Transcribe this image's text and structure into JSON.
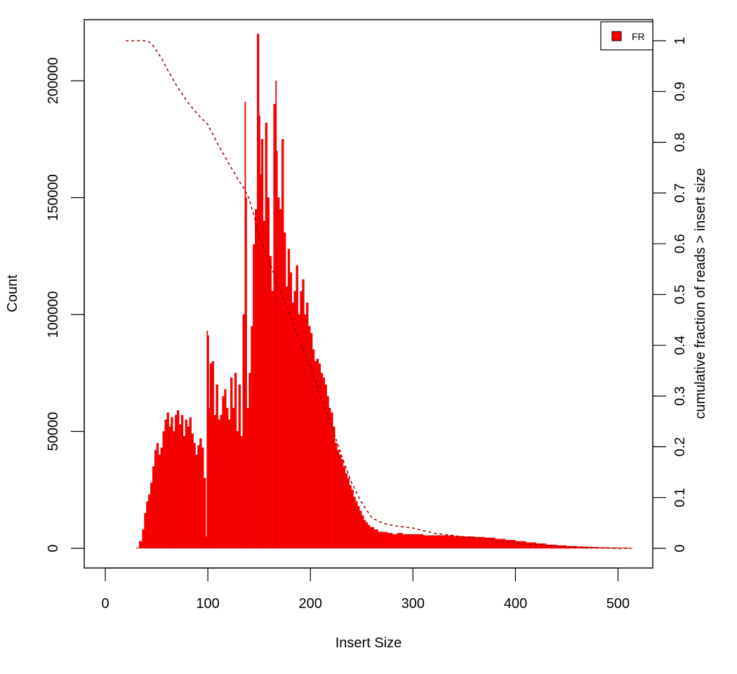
{
  "chart_data": {
    "type": "bar",
    "title": "",
    "xlabel": "Insert Size",
    "ylabel": "Count",
    "y2label": "cumulative fraction of reads > insert size",
    "xlim": [
      0,
      520
    ],
    "ylim": [
      0,
      217000
    ],
    "y2lim": [
      0,
      1
    ],
    "x_ticks": [
      0,
      100,
      200,
      300,
      400,
      500
    ],
    "y_ticks": [
      0,
      50000,
      100000,
      150000,
      200000
    ],
    "y2_ticks": [
      0,
      0.1,
      0.2,
      0.3,
      0.4,
      0.5,
      0.6,
      0.7,
      0.8,
      0.9,
      1
    ],
    "legend": {
      "position": "top-right",
      "entries": [
        "FR"
      ]
    },
    "colors": {
      "bars": "#ff0000",
      "bar_edge": "#cc0000",
      "cumulative_line": "#990000"
    },
    "series": [
      {
        "name": "FR",
        "type": "histogram",
        "x": [
          20,
          25,
          30,
          33,
          36,
          38,
          40,
          42,
          44,
          46,
          48,
          50,
          52,
          54,
          56,
          58,
          60,
          62,
          64,
          66,
          68,
          70,
          72,
          74,
          76,
          78,
          80,
          82,
          84,
          86,
          88,
          90,
          92,
          94,
          96,
          98,
          99,
          100,
          101,
          102,
          104,
          106,
          108,
          110,
          112,
          114,
          116,
          118,
          120,
          122,
          124,
          126,
          128,
          130,
          132,
          134,
          136,
          137,
          138,
          140,
          142,
          144,
          146,
          148,
          150,
          151,
          152,
          154,
          156,
          158,
          160,
          162,
          164,
          166,
          167,
          168,
          170,
          172,
          174,
          176,
          178,
          180,
          182,
          184,
          186,
          188,
          190,
          192,
          194,
          196,
          198,
          200,
          202,
          204,
          206,
          208,
          210,
          212,
          214,
          216,
          218,
          220,
          222,
          224,
          226,
          228,
          230,
          232,
          234,
          236,
          238,
          240,
          242,
          244,
          246,
          248,
          250,
          252,
          254,
          256,
          258,
          260,
          262,
          264,
          266,
          268,
          270,
          275,
          280,
          285,
          290,
          295,
          300,
          310,
          320,
          330,
          340,
          350,
          360,
          370,
          380,
          390,
          400,
          410,
          420,
          430,
          440,
          450,
          460,
          470,
          480,
          490,
          500,
          510,
          513
        ],
        "values": [
          0,
          0,
          200,
          3000,
          8000,
          15000,
          20000,
          23000,
          28000,
          35000,
          42000,
          45000,
          40000,
          43000,
          50000,
          55000,
          58000,
          52000,
          56000,
          50000,
          57000,
          59000,
          53000,
          57000,
          48000,
          55000,
          52000,
          56000,
          49000,
          45000,
          40000,
          44000,
          47000,
          43000,
          30000,
          5000,
          93000,
          91000,
          60000,
          79000,
          80000,
          57000,
          70000,
          55000,
          57000,
          65000,
          68000,
          60000,
          55000,
          73000,
          60000,
          75000,
          50000,
          70000,
          48000,
          100000,
          191000,
          150000,
          60000,
          75000,
          95000,
          130000,
          145000,
          220000,
          185000,
          160000,
          175000,
          140000,
          182000,
          150000,
          125000,
          110000,
          190000,
          200000,
          170000,
          150000,
          145000,
          175000,
          135000,
          112000,
          128000,
          118000,
          105000,
          110000,
          121000,
          100000,
          110000,
          115000,
          100000,
          105000,
          95000,
          92000,
          85000,
          80000,
          81000,
          79000,
          75000,
          73000,
          70000,
          65000,
          60000,
          58000,
          52000,
          45000,
          42000,
          40000,
          38000,
          35000,
          32000,
          30000,
          27000,
          25000,
          22000,
          20000,
          18000,
          16000,
          14000,
          12000,
          11000,
          10000,
          9000,
          9000,
          8000,
          8000,
          7000,
          7000,
          7000,
          6500,
          6000,
          6500,
          6000,
          6000,
          6000,
          5500,
          5500,
          5500,
          5200,
          5000,
          4800,
          4500,
          4000,
          3500,
          3000,
          2500,
          2000,
          1500,
          1200,
          900,
          700,
          500,
          400,
          300,
          200,
          150,
          100
        ]
      },
      {
        "name": "cumulative fraction",
        "type": "line",
        "axis": "right",
        "x": [
          20,
          30,
          40,
          45,
          50,
          55,
          60,
          70,
          80,
          90,
          100,
          105,
          110,
          120,
          130,
          135,
          140,
          145,
          150,
          160,
          170,
          180,
          190,
          200,
          210,
          220,
          230,
          240,
          250,
          260,
          270,
          280,
          300,
          320,
          340,
          360,
          380,
          400,
          420,
          440,
          460,
          480,
          500,
          513
        ],
        "values": [
          1,
          1,
          1,
          0.995,
          0.98,
          0.965,
          0.945,
          0.91,
          0.88,
          0.855,
          0.835,
          0.815,
          0.795,
          0.76,
          0.725,
          0.71,
          0.69,
          0.655,
          0.615,
          0.565,
          0.51,
          0.46,
          0.405,
          0.36,
          0.3,
          0.245,
          0.185,
          0.13,
          0.09,
          0.06,
          0.05,
          0.045,
          0.04,
          0.03,
          0.025,
          0.02,
          0.015,
          0.01,
          0.007,
          0.004,
          0.002,
          0.001,
          0,
          0
        ]
      }
    ]
  }
}
